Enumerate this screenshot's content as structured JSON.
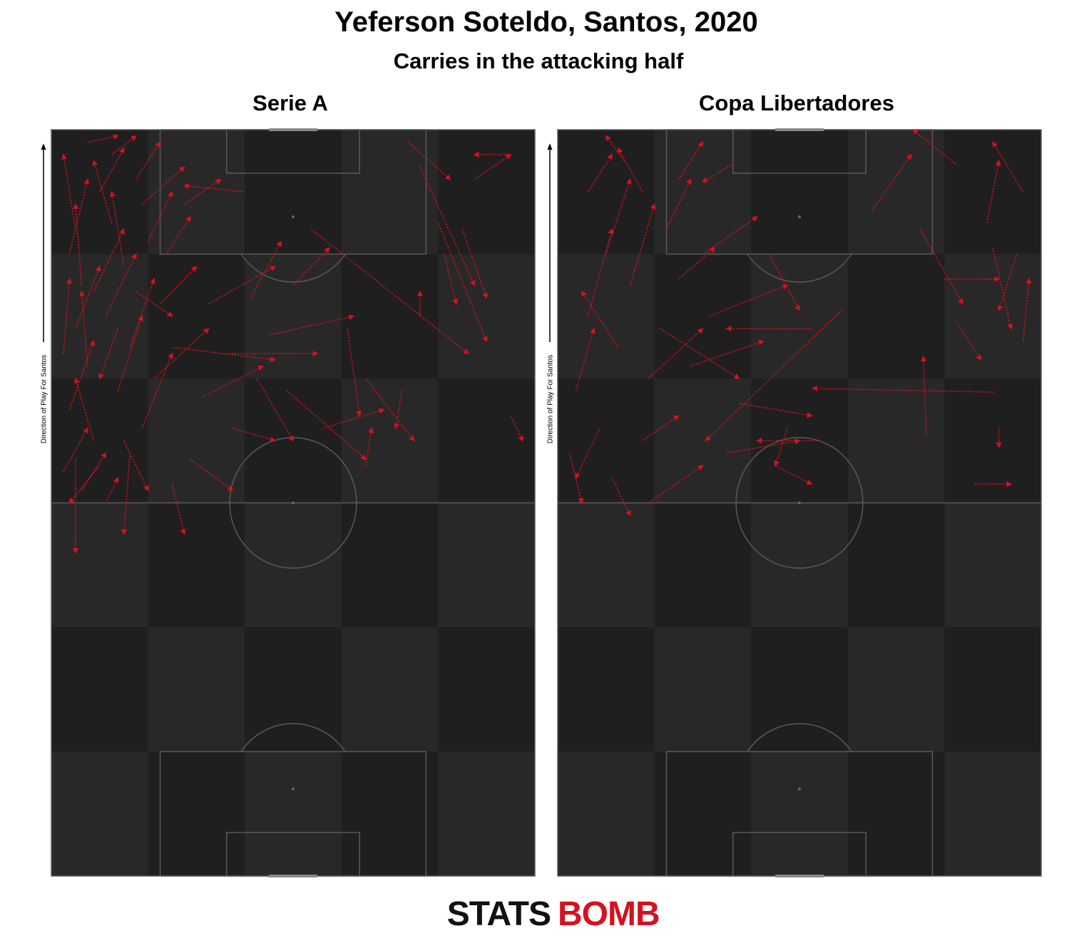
{
  "header": {
    "title": "Yeferson Soteldo, Santos, 2020",
    "subtitle": "Carries in the attacking half"
  },
  "axis_label": "Direction of Play For Santos",
  "logo": {
    "first": "STATS",
    "second": "BOMB"
  },
  "chart_data": [
    {
      "type": "carry",
      "title": "Serie A",
      "color": "#d6111f",
      "xlim": [
        0,
        80
      ],
      "ylim": [
        0,
        120
      ],
      "carries": [
        {
          "x": 3,
          "y": 100,
          "end_x": 6,
          "end_y": 112
        },
        {
          "x": 5,
          "y": 95,
          "end_x": 4,
          "end_y": 108
        },
        {
          "x": 8,
          "y": 110,
          "end_x": 12,
          "end_y": 117
        },
        {
          "x": 10,
          "y": 105,
          "end_x": 7,
          "end_y": 115
        },
        {
          "x": 4,
          "y": 88,
          "end_x": 8,
          "end_y": 98
        },
        {
          "x": 6,
          "y": 82,
          "end_x": 5,
          "end_y": 94
        },
        {
          "x": 9,
          "y": 90,
          "end_x": 14,
          "end_y": 100
        },
        {
          "x": 12,
          "y": 98,
          "end_x": 10,
          "end_y": 110
        },
        {
          "x": 14,
          "y": 112,
          "end_x": 18,
          "end_y": 118
        },
        {
          "x": 3,
          "y": 75,
          "end_x": 7,
          "end_y": 86
        },
        {
          "x": 7,
          "y": 70,
          "end_x": 4,
          "end_y": 80
        },
        {
          "x": 11,
          "y": 78,
          "end_x": 15,
          "end_y": 90
        },
        {
          "x": 2,
          "y": 65,
          "end_x": 6,
          "end_y": 72
        },
        {
          "x": 5,
          "y": 62,
          "end_x": 9,
          "end_y": 68
        },
        {
          "x": 8,
          "y": 66,
          "end_x": 3,
          "end_y": 60
        },
        {
          "x": 13,
          "y": 85,
          "end_x": 17,
          "end_y": 96
        },
        {
          "x": 16,
          "y": 102,
          "end_x": 20,
          "end_y": 110
        },
        {
          "x": 18,
          "y": 92,
          "end_x": 24,
          "end_y": 98
        },
        {
          "x": 15,
          "y": 72,
          "end_x": 20,
          "end_y": 84
        },
        {
          "x": 4,
          "y": 104,
          "end_x": 2,
          "end_y": 116
        },
        {
          "x": 10,
          "y": 116,
          "end_x": 14,
          "end_y": 119
        },
        {
          "x": 6,
          "y": 118,
          "end_x": 11,
          "end_y": 119
        },
        {
          "x": 12,
          "y": 70,
          "end_x": 16,
          "end_y": 62
        },
        {
          "x": 9,
          "y": 60,
          "end_x": 11,
          "end_y": 64
        },
        {
          "x": 4,
          "y": 67,
          "end_x": 4,
          "end_y": 52
        },
        {
          "x": 20,
          "y": 63,
          "end_x": 22,
          "end_y": 55
        },
        {
          "x": 13,
          "y": 68,
          "end_x": 12,
          "end_y": 55
        },
        {
          "x": 17,
          "y": 80,
          "end_x": 26,
          "end_y": 88
        },
        {
          "x": 19,
          "y": 100,
          "end_x": 23,
          "end_y": 106
        },
        {
          "x": 22,
          "y": 108,
          "end_x": 28,
          "end_y": 112
        },
        {
          "x": 15,
          "y": 108,
          "end_x": 22,
          "end_y": 114
        },
        {
          "x": 7,
          "y": 94,
          "end_x": 12,
          "end_y": 104
        },
        {
          "x": 2,
          "y": 84,
          "end_x": 3,
          "end_y": 96
        },
        {
          "x": 11,
          "y": 88,
          "end_x": 8,
          "end_y": 80
        },
        {
          "x": 14,
          "y": 94,
          "end_x": 20,
          "end_y": 90
        },
        {
          "x": 32,
          "y": 110,
          "end_x": 22,
          "end_y": 111
        },
        {
          "x": 43,
          "y": 104,
          "end_x": 69,
          "end_y": 84
        },
        {
          "x": 20,
          "y": 85,
          "end_x": 37,
          "end_y": 83
        },
        {
          "x": 28,
          "y": 84,
          "end_x": 44,
          "end_y": 84
        },
        {
          "x": 36,
          "y": 87,
          "end_x": 50,
          "end_y": 90
        },
        {
          "x": 25,
          "y": 77,
          "end_x": 35,
          "end_y": 82
        },
        {
          "x": 30,
          "y": 72,
          "end_x": 37,
          "end_y": 70
        },
        {
          "x": 23,
          "y": 67,
          "end_x": 30,
          "end_y": 62
        },
        {
          "x": 34,
          "y": 80,
          "end_x": 40,
          "end_y": 70
        },
        {
          "x": 39,
          "y": 78,
          "end_x": 52,
          "end_y": 67
        },
        {
          "x": 49,
          "y": 88,
          "end_x": 51,
          "end_y": 74
        },
        {
          "x": 52,
          "y": 80,
          "end_x": 60,
          "end_y": 70
        },
        {
          "x": 45,
          "y": 72,
          "end_x": 55,
          "end_y": 75
        },
        {
          "x": 40,
          "y": 95,
          "end_x": 46,
          "end_y": 101
        },
        {
          "x": 26,
          "y": 92,
          "end_x": 37,
          "end_y": 98
        },
        {
          "x": 33,
          "y": 93,
          "end_x": 38,
          "end_y": 102
        },
        {
          "x": 76,
          "y": 116,
          "end_x": 70,
          "end_y": 116
        },
        {
          "x": 59,
          "y": 118,
          "end_x": 66,
          "end_y": 112
        },
        {
          "x": 61,
          "y": 114,
          "end_x": 70,
          "end_y": 95
        },
        {
          "x": 64,
          "y": 105,
          "end_x": 72,
          "end_y": 86
        },
        {
          "x": 70,
          "y": 112,
          "end_x": 76,
          "end_y": 116
        },
        {
          "x": 68,
          "y": 104,
          "end_x": 72,
          "end_y": 93
        },
        {
          "x": 65,
          "y": 100,
          "end_x": 67,
          "end_y": 92
        },
        {
          "x": 76,
          "y": 74,
          "end_x": 78,
          "end_y": 70
        },
        {
          "x": 61,
          "y": 90,
          "end_x": 61,
          "end_y": 94
        },
        {
          "x": 58,
          "y": 78,
          "end_x": 57,
          "end_y": 72
        },
        {
          "x": 52,
          "y": 66,
          "end_x": 53,
          "end_y": 72
        }
      ]
    },
    {
      "type": "carry",
      "title": "Copa Libertadores",
      "color": "#d6111f",
      "xlim": [
        0,
        80
      ],
      "ylim": [
        0,
        120
      ],
      "carries": [
        {
          "x": 29,
          "y": 114.5,
          "end_x": 24,
          "end_y": 111.6
        },
        {
          "x": 47,
          "y": 91,
          "end_x": 24.5,
          "end_y": 70
        },
        {
          "x": 72.3,
          "y": 77.8,
          "end_x": 42.2,
          "end_y": 78.4
        },
        {
          "x": 61,
          "y": 71,
          "end_x": 60.5,
          "end_y": 83.5
        },
        {
          "x": 65.8,
          "y": 114.5,
          "end_x": 58.8,
          "end_y": 120
        },
        {
          "x": 52,
          "y": 107,
          "end_x": 58.5,
          "end_y": 116
        },
        {
          "x": 8,
          "y": 100,
          "end_x": 12,
          "end_y": 112
        },
        {
          "x": 5,
          "y": 90,
          "end_x": 9,
          "end_y": 104
        },
        {
          "x": 10,
          "y": 85,
          "end_x": 4,
          "end_y": 94
        },
        {
          "x": 3,
          "y": 78,
          "end_x": 6,
          "end_y": 88
        },
        {
          "x": 7,
          "y": 72,
          "end_x": 3,
          "end_y": 64
        },
        {
          "x": 12,
          "y": 95,
          "end_x": 16,
          "end_y": 108
        },
        {
          "x": 14,
          "y": 110,
          "end_x": 10,
          "end_y": 117
        },
        {
          "x": 18,
          "y": 104,
          "end_x": 22,
          "end_y": 112
        },
        {
          "x": 20,
          "y": 96,
          "end_x": 26,
          "end_y": 101
        },
        {
          "x": 2,
          "y": 68,
          "end_x": 4,
          "end_y": 60
        },
        {
          "x": 9,
          "y": 64,
          "end_x": 12,
          "end_y": 58
        },
        {
          "x": 15,
          "y": 80,
          "end_x": 24,
          "end_y": 88
        },
        {
          "x": 22,
          "y": 82,
          "end_x": 34,
          "end_y": 86
        },
        {
          "x": 25,
          "y": 90,
          "end_x": 38,
          "end_y": 95
        },
        {
          "x": 30,
          "y": 76,
          "end_x": 42,
          "end_y": 74
        },
        {
          "x": 28,
          "y": 68,
          "end_x": 40,
          "end_y": 70
        },
        {
          "x": 14,
          "y": 70,
          "end_x": 20,
          "end_y": 74
        },
        {
          "x": 17,
          "y": 88,
          "end_x": 30,
          "end_y": 80
        },
        {
          "x": 24,
          "y": 100,
          "end_x": 33,
          "end_y": 106
        },
        {
          "x": 35,
          "y": 100,
          "end_x": 40,
          "end_y": 91
        },
        {
          "x": 38,
          "y": 72,
          "end_x": 36,
          "end_y": 66
        },
        {
          "x": 43,
          "y": 70,
          "end_x": 33,
          "end_y": 70
        },
        {
          "x": 15,
          "y": 60,
          "end_x": 24,
          "end_y": 66
        },
        {
          "x": 36,
          "y": 66,
          "end_x": 42,
          "end_y": 63
        },
        {
          "x": 64,
          "y": 96,
          "end_x": 73,
          "end_y": 96
        },
        {
          "x": 66,
          "y": 89,
          "end_x": 70,
          "end_y": 83
        },
        {
          "x": 72,
          "y": 101,
          "end_x": 75,
          "end_y": 88
        },
        {
          "x": 77,
          "y": 86,
          "end_x": 78,
          "end_y": 96
        },
        {
          "x": 76,
          "y": 100,
          "end_x": 73,
          "end_y": 91
        },
        {
          "x": 60,
          "y": 104,
          "end_x": 67,
          "end_y": 92
        },
        {
          "x": 71,
          "y": 105,
          "end_x": 73,
          "end_y": 115
        },
        {
          "x": 77,
          "y": 110,
          "end_x": 72,
          "end_y": 118
        },
        {
          "x": 69,
          "y": 63,
          "end_x": 75,
          "end_y": 63
        },
        {
          "x": 73,
          "y": 72,
          "end_x": 73,
          "end_y": 69
        },
        {
          "x": 42,
          "y": 88,
          "end_x": 28,
          "end_y": 88
        },
        {
          "x": 5,
          "y": 110,
          "end_x": 9,
          "end_y": 116
        },
        {
          "x": 11,
          "y": 115,
          "end_x": 8,
          "end_y": 119
        },
        {
          "x": 20,
          "y": 112,
          "end_x": 24,
          "end_y": 118
        }
      ]
    }
  ]
}
